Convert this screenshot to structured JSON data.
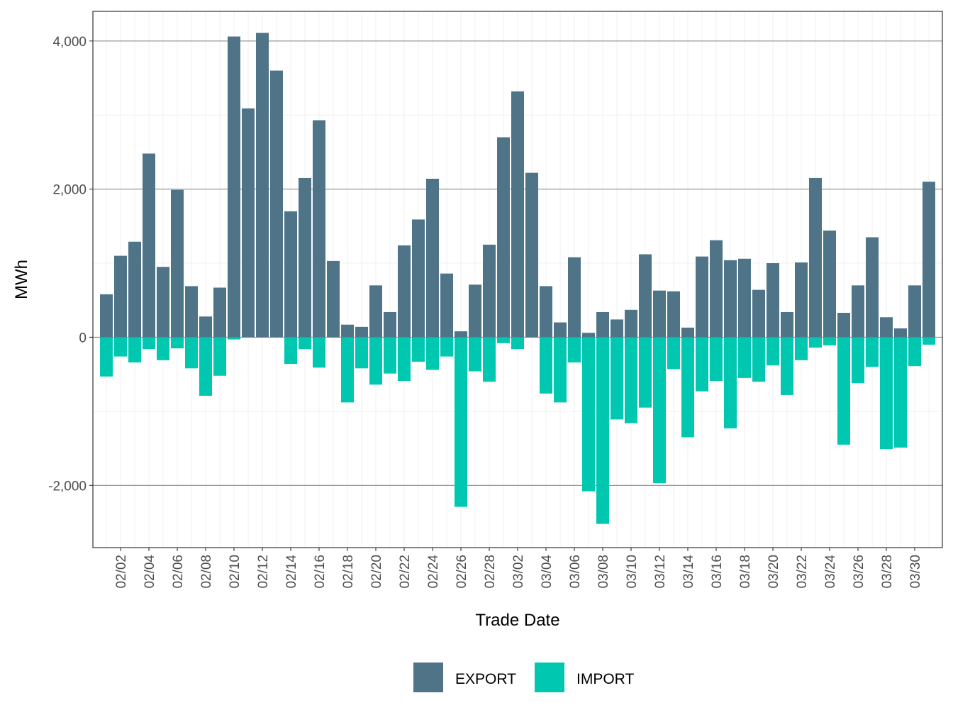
{
  "chart_data": {
    "type": "bar",
    "xlabel": "Trade Date",
    "ylabel": "MWh",
    "ylim": [
      -2840,
      4400
    ],
    "y_ticks": [
      -2000,
      0,
      2000,
      4000
    ],
    "y_tick_labels": [
      "-2,000",
      "0",
      "2,000",
      "4,000"
    ],
    "grid": true,
    "legend_position": "bottom",
    "categories": [
      "02/01",
      "02/02",
      "02/03",
      "02/04",
      "02/05",
      "02/06",
      "02/07",
      "02/08",
      "02/09",
      "02/10",
      "02/11",
      "02/12",
      "02/13",
      "02/14",
      "02/15",
      "02/16",
      "02/17",
      "02/18",
      "02/19",
      "02/20",
      "02/21",
      "02/22",
      "02/23",
      "02/24",
      "02/25",
      "02/26",
      "02/27",
      "02/28",
      "03/01",
      "03/02",
      "03/03",
      "03/04",
      "03/05",
      "03/06",
      "03/07",
      "03/08",
      "03/09",
      "03/10",
      "03/11",
      "03/12",
      "03/13",
      "03/14",
      "03/15",
      "03/16",
      "03/17",
      "03/18",
      "03/19",
      "03/20",
      "03/21",
      "03/22",
      "03/23",
      "03/24",
      "03/25",
      "03/26",
      "03/27",
      "03/28",
      "03/29",
      "03/30",
      "03/31"
    ],
    "x_tick_labels": [
      "02/02",
      "02/04",
      "02/06",
      "02/08",
      "02/10",
      "02/12",
      "02/14",
      "02/16",
      "02/18",
      "02/20",
      "02/22",
      "02/24",
      "02/26",
      "02/28",
      "03/02",
      "03/04",
      "03/06",
      "03/08",
      "03/10",
      "03/12",
      "03/14",
      "03/16",
      "03/18",
      "03/20",
      "03/22",
      "03/24",
      "03/26",
      "03/28",
      "03/30"
    ],
    "series": [
      {
        "name": "EXPORT",
        "color": "#4f7488",
        "values": [
          580,
          1100,
          1290,
          2480,
          950,
          1990,
          690,
          280,
          670,
          4060,
          3090,
          4110,
          3600,
          1700,
          2150,
          2930,
          1030,
          170,
          140,
          700,
          340,
          1240,
          1590,
          2140,
          860,
          80,
          710,
          1250,
          2700,
          3320,
          2220,
          690,
          200,
          1080,
          60,
          340,
          240,
          370,
          1120,
          630,
          620,
          130,
          1090,
          1310,
          1040,
          1060,
          640,
          1000,
          340,
          1010,
          2150,
          1440,
          330,
          700,
          1350,
          270,
          120,
          700,
          2100
        ]
      },
      {
        "name": "IMPORT",
        "color": "#00c8b0",
        "values": [
          -530,
          -260,
          -340,
          -160,
          -310,
          -150,
          -420,
          -790,
          -520,
          -30,
          0,
          0,
          0,
          -360,
          -160,
          -410,
          0,
          -880,
          -420,
          -640,
          -490,
          -590,
          -330,
          -440,
          -260,
          -2290,
          -460,
          -600,
          -80,
          -160,
          0,
          -760,
          -880,
          -340,
          -2080,
          -2520,
          -1110,
          -1160,
          -950,
          -1970,
          -430,
          -1350,
          -730,
          -590,
          -1230,
          -550,
          -600,
          -380,
          -780,
          -310,
          -140,
          -110,
          -1450,
          -620,
          -400,
          -1510,
          -1490,
          -390,
          -100
        ]
      }
    ]
  }
}
